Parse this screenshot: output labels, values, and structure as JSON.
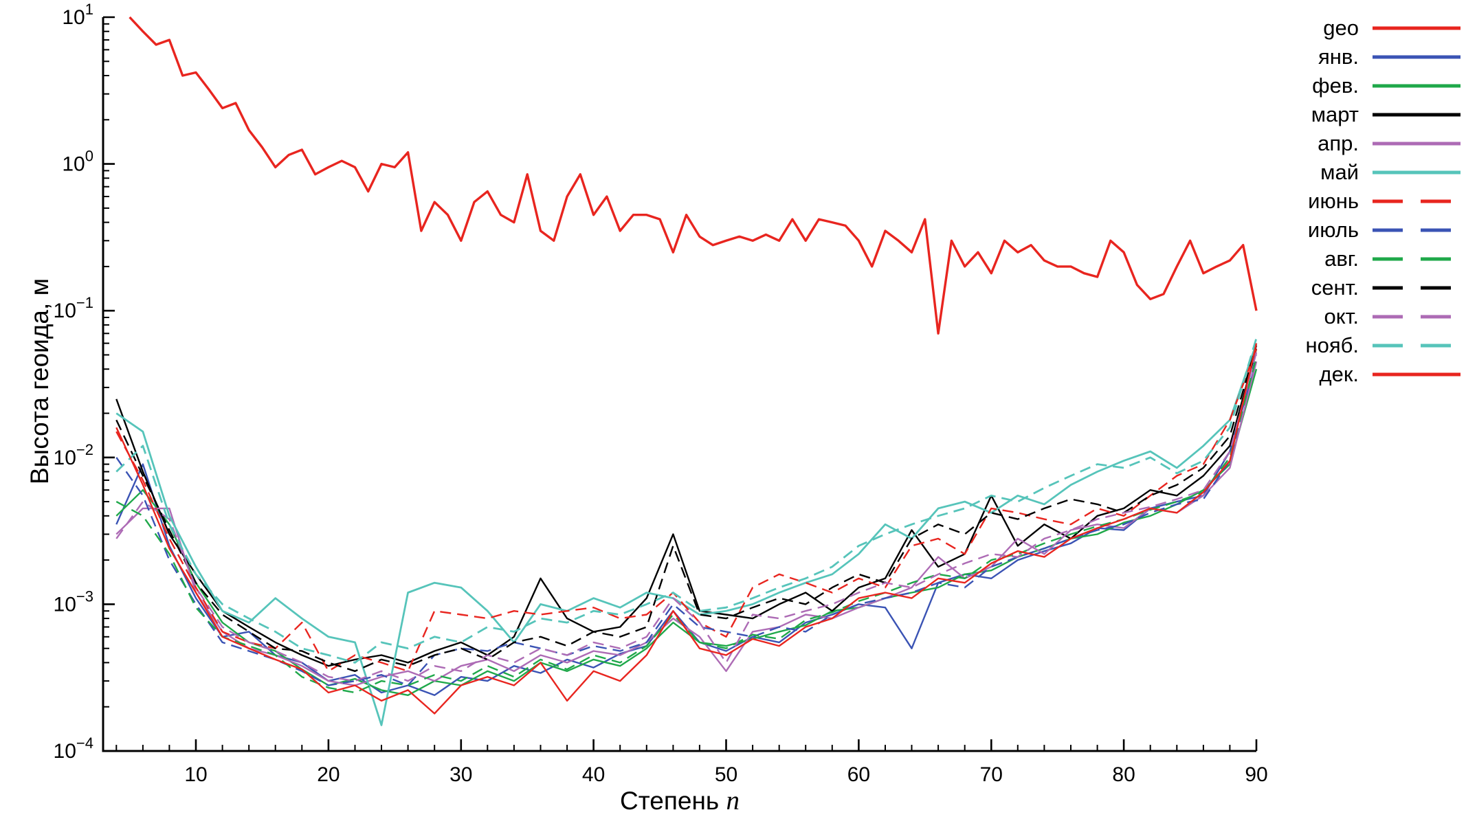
{
  "chart_data": {
    "type": "line",
    "title": "",
    "xlabel": "Степень n",
    "xlabel_text": "Степень",
    "xlabel_var": "n",
    "ylabel": "Высота геоида, м",
    "yscale": "log",
    "xlim": [
      3,
      90
    ],
    "ylim_exp": [
      -4,
      1
    ],
    "x_ticks": [
      10,
      20,
      30,
      40,
      50,
      60,
      70,
      80,
      90
    ],
    "x_minor_step": 2,
    "y_tick_exponents": [
      1,
      0,
      -1,
      -2,
      -3,
      -4
    ],
    "legend_position": "right-top",
    "grid": false,
    "colors": {
      "red": "#e8251f",
      "blue": "#3a53b4",
      "green": "#1fa84a",
      "black": "#000000",
      "purple": "#ad6bb5",
      "cyan": "#56c4ba"
    },
    "x": [
      4,
      6,
      8,
      10,
      12,
      14,
      16,
      18,
      20,
      22,
      24,
      26,
      28,
      30,
      32,
      34,
      36,
      38,
      40,
      42,
      44,
      46,
      48,
      50,
      52,
      54,
      56,
      58,
      60,
      62,
      64,
      66,
      68,
      70,
      72,
      74,
      76,
      78,
      80,
      82,
      84,
      86,
      88,
      90
    ],
    "series": [
      {
        "id": "geo",
        "name": "geo",
        "color": "#e8251f",
        "dash": false,
        "width": 3.4,
        "x": [
          5,
          6,
          7,
          8,
          9,
          10,
          11,
          12,
          13,
          14,
          15,
          16,
          17,
          18,
          19,
          20,
          21,
          22,
          23,
          24,
          25,
          26,
          27,
          28,
          29,
          30,
          31,
          32,
          33,
          34,
          35,
          36,
          37,
          38,
          39,
          40,
          41,
          42,
          43,
          44,
          45,
          46,
          47,
          48,
          49,
          50,
          51,
          52,
          53,
          54,
          55,
          56,
          57,
          58,
          59,
          60,
          61,
          62,
          63,
          64,
          65,
          66,
          67,
          68,
          69,
          70,
          71,
          72,
          73,
          74,
          75,
          76,
          77,
          78,
          79,
          80,
          81,
          82,
          83,
          84,
          85,
          86,
          87,
          88,
          89,
          90
        ],
        "values": [
          10,
          8,
          6.5,
          7,
          4,
          4.2,
          3.2,
          2.4,
          2.6,
          1.7,
          1.3,
          0.95,
          1.15,
          1.25,
          0.85,
          0.95,
          1.05,
          0.95,
          0.65,
          1.0,
          0.95,
          1.2,
          0.35,
          0.55,
          0.45,
          0.3,
          0.55,
          0.65,
          0.45,
          0.4,
          0.85,
          0.35,
          0.3,
          0.6,
          0.85,
          0.45,
          0.6,
          0.35,
          0.45,
          0.45,
          0.42,
          0.25,
          0.45,
          0.32,
          0.28,
          0.3,
          0.32,
          0.3,
          0.33,
          0.3,
          0.42,
          0.3,
          0.42,
          0.4,
          0.38,
          0.3,
          0.2,
          0.35,
          0.3,
          0.25,
          0.42,
          0.07,
          0.3,
          0.2,
          0.25,
          0.18,
          0.3,
          0.25,
          0.28,
          0.22,
          0.2,
          0.2,
          0.18,
          0.17,
          0.3,
          0.25,
          0.15,
          0.12,
          0.13,
          0.2,
          0.3,
          0.18,
          0.2,
          0.22,
          0.28,
          0.1
        ]
      },
      {
        "id": "jan",
        "name": "янв.",
        "color": "#3a53b4",
        "dash": false,
        "width": 2.4,
        "values": [
          0.0035,
          0.009,
          0.0025,
          0.0011,
          0.0006,
          0.00065,
          0.00045,
          0.0004,
          0.0003,
          0.00033,
          0.00025,
          0.00028,
          0.00024,
          0.00032,
          0.0003,
          0.00038,
          0.00034,
          0.00042,
          0.00037,
          0.00046,
          0.00052,
          0.0009,
          0.00055,
          0.00048,
          0.0006,
          0.00055,
          0.00075,
          0.00085,
          0.001,
          0.00095,
          0.0005,
          0.0014,
          0.0016,
          0.0015,
          0.002,
          0.0023,
          0.0026,
          0.0033,
          0.0032,
          0.0045,
          0.005,
          0.0055,
          0.011,
          0.045
        ]
      },
      {
        "id": "feb",
        "name": "фев.",
        "color": "#1fa84a",
        "dash": false,
        "width": 2.4,
        "values": [
          0.004,
          0.006,
          0.0035,
          0.0014,
          0.00075,
          0.00055,
          0.00048,
          0.00036,
          0.00028,
          0.00031,
          0.00026,
          0.00024,
          0.0003,
          0.00028,
          0.00035,
          0.0003,
          0.0004,
          0.00035,
          0.00042,
          0.00038,
          0.0005,
          0.00075,
          0.00055,
          0.00052,
          0.00058,
          0.00065,
          0.00072,
          0.0009,
          0.00095,
          0.0011,
          0.0012,
          0.0013,
          0.0016,
          0.0017,
          0.0021,
          0.0024,
          0.0028,
          0.003,
          0.0036,
          0.004,
          0.0048,
          0.006,
          0.009,
          0.04
        ]
      },
      {
        "id": "mar",
        "name": "март",
        "color": "#000000",
        "dash": false,
        "width": 2.4,
        "values": [
          0.025,
          0.008,
          0.003,
          0.0016,
          0.0009,
          0.0007,
          0.00055,
          0.00045,
          0.00038,
          0.00042,
          0.00045,
          0.0004,
          0.00048,
          0.00055,
          0.00045,
          0.0006,
          0.0015,
          0.0008,
          0.00065,
          0.0007,
          0.0011,
          0.003,
          0.0009,
          0.00085,
          0.0008,
          0.001,
          0.0012,
          0.0009,
          0.0013,
          0.0015,
          0.0032,
          0.0018,
          0.0022,
          0.0055,
          0.0025,
          0.0035,
          0.0028,
          0.004,
          0.0045,
          0.006,
          0.0055,
          0.0075,
          0.012,
          0.055
        ]
      },
      {
        "id": "apr",
        "name": "апр.",
        "color": "#ad6bb5",
        "dash": false,
        "width": 2.4,
        "values": [
          0.003,
          0.0045,
          0.0045,
          0.0012,
          0.00065,
          0.0005,
          0.00045,
          0.00038,
          0.0003,
          0.00028,
          0.00032,
          0.00035,
          0.0003,
          0.00038,
          0.00042,
          0.00035,
          0.00045,
          0.0004,
          0.00048,
          0.00045,
          0.00055,
          0.0008,
          0.0006,
          0.00035,
          0.00065,
          0.0007,
          0.00085,
          0.0008,
          0.00095,
          0.0011,
          0.0013,
          0.0021,
          0.0015,
          0.0018,
          0.0028,
          0.0022,
          0.0032,
          0.0035,
          0.0033,
          0.0045,
          0.0042,
          0.0055,
          0.0085,
          0.045
        ]
      },
      {
        "id": "may",
        "name": "май",
        "color": "#56c4ba",
        "dash": false,
        "width": 2.8,
        "values": [
          0.02,
          0.015,
          0.004,
          0.0018,
          0.0009,
          0.00075,
          0.0011,
          0.0008,
          0.0006,
          0.00055,
          0.00015,
          0.0012,
          0.0014,
          0.0013,
          0.0009,
          0.00055,
          0.001,
          0.0009,
          0.0011,
          0.00095,
          0.0012,
          0.0011,
          0.00085,
          0.0009,
          0.001,
          0.0012,
          0.0014,
          0.0016,
          0.0022,
          0.0035,
          0.0028,
          0.0045,
          0.005,
          0.0042,
          0.0055,
          0.0048,
          0.0065,
          0.008,
          0.0095,
          0.011,
          0.0085,
          0.012,
          0.018,
          0.06
        ]
      },
      {
        "id": "jun",
        "name": "июнь",
        "color": "#e8251f",
        "dash": true,
        "width": 2.4,
        "values": [
          0.015,
          0.007,
          0.0028,
          0.0013,
          0.00065,
          0.00055,
          0.0005,
          0.00075,
          0.00035,
          0.00045,
          0.0004,
          0.00035,
          0.0009,
          0.00085,
          0.0008,
          0.0009,
          0.00085,
          0.0009,
          0.00095,
          0.0008,
          0.00085,
          0.0012,
          0.00075,
          0.0006,
          0.0013,
          0.0016,
          0.0014,
          0.0012,
          0.0015,
          0.0013,
          0.0025,
          0.0028,
          0.0022,
          0.0045,
          0.0042,
          0.0038,
          0.0035,
          0.0045,
          0.004,
          0.0055,
          0.0075,
          0.009,
          0.018,
          0.055
        ]
      },
      {
        "id": "jul",
        "name": "июль",
        "color": "#3a53b4",
        "dash": true,
        "width": 2.4,
        "values": [
          0.01,
          0.0055,
          0.002,
          0.001,
          0.00055,
          0.00048,
          0.00042,
          0.00035,
          0.00028,
          0.0003,
          0.00033,
          0.00028,
          0.00045,
          0.0005,
          0.00048,
          0.00055,
          0.0005,
          0.00045,
          0.00052,
          0.00048,
          0.00055,
          0.001,
          0.0007,
          0.00065,
          0.0006,
          0.0007,
          0.00065,
          0.00085,
          0.001,
          0.0011,
          0.0012,
          0.0014,
          0.0013,
          0.0018,
          0.0021,
          0.0024,
          0.0028,
          0.0032,
          0.0035,
          0.0042,
          0.0048,
          0.0052,
          0.0095,
          0.05
        ]
      },
      {
        "id": "aug",
        "name": "авг.",
        "color": "#1fa84a",
        "dash": true,
        "width": 2.4,
        "values": [
          0.005,
          0.004,
          0.0022,
          0.00095,
          0.0006,
          0.00052,
          0.00045,
          0.00032,
          0.00027,
          0.00025,
          0.0003,
          0.00028,
          0.00033,
          0.0003,
          0.00038,
          0.00032,
          0.00042,
          0.00036,
          0.00045,
          0.0004,
          0.00052,
          0.00085,
          0.00055,
          0.0005,
          0.00062,
          0.00058,
          0.00078,
          0.00088,
          0.00105,
          0.0012,
          0.0014,
          0.0016,
          0.0015,
          0.002,
          0.0022,
          0.0026,
          0.003,
          0.0034,
          0.0038,
          0.0044,
          0.005,
          0.0058,
          0.01,
          0.048
        ]
      },
      {
        "id": "sep",
        "name": "сент.",
        "color": "#000000",
        "dash": true,
        "width": 2.4,
        "values": [
          0.018,
          0.0075,
          0.0032,
          0.0014,
          0.00085,
          0.00065,
          0.0005,
          0.00048,
          0.0004,
          0.00035,
          0.00042,
          0.00038,
          0.00045,
          0.0005,
          0.00042,
          0.00055,
          0.0006,
          0.00052,
          0.00065,
          0.0006,
          0.0007,
          0.0025,
          0.00085,
          0.0008,
          0.00095,
          0.0011,
          0.001,
          0.0013,
          0.0016,
          0.0014,
          0.0028,
          0.0035,
          0.003,
          0.0042,
          0.0038,
          0.0045,
          0.0052,
          0.0048,
          0.0042,
          0.0055,
          0.0065,
          0.0085,
          0.014,
          0.058
        ]
      },
      {
        "id": "oct",
        "name": "окт.",
        "color": "#ad6bb5",
        "dash": true,
        "width": 2.4,
        "values": [
          0.0028,
          0.005,
          0.0038,
          0.0013,
          0.0007,
          0.00055,
          0.00048,
          0.0004,
          0.00032,
          0.0003,
          0.00035,
          0.0003,
          0.00038,
          0.00035,
          0.00045,
          0.0004,
          0.0005,
          0.00045,
          0.00055,
          0.0005,
          0.0006,
          0.0011,
          0.00075,
          0.0004,
          0.00085,
          0.0008,
          0.0009,
          0.001,
          0.0012,
          0.0014,
          0.0013,
          0.0016,
          0.0019,
          0.0022,
          0.0021,
          0.0028,
          0.0032,
          0.0038,
          0.0042,
          0.0046,
          0.0052,
          0.006,
          0.011,
          0.052
        ]
      },
      {
        "id": "nov",
        "name": "нояб.",
        "color": "#56c4ba",
        "dash": true,
        "width": 2.8,
        "values": [
          0.008,
          0.012,
          0.0035,
          0.0016,
          0.001,
          0.0008,
          0.00065,
          0.0005,
          0.00045,
          0.0004,
          0.00055,
          0.0005,
          0.0006,
          0.00055,
          0.0007,
          0.00065,
          0.0008,
          0.00075,
          0.0009,
          0.00085,
          0.001,
          0.0012,
          0.0009,
          0.00095,
          0.0011,
          0.0013,
          0.0015,
          0.0018,
          0.0025,
          0.003,
          0.0035,
          0.004,
          0.0045,
          0.0055,
          0.005,
          0.0062,
          0.0075,
          0.009,
          0.0085,
          0.01,
          0.0078,
          0.0095,
          0.016,
          0.065
        ]
      },
      {
        "id": "dec",
        "name": "дек.",
        "color": "#e8251f",
        "dash": false,
        "width": 2.4,
        "values": [
          0.016,
          0.0065,
          0.0024,
          0.0012,
          0.0006,
          0.0005,
          0.00042,
          0.00036,
          0.00025,
          0.00028,
          0.00022,
          0.00026,
          0.00018,
          0.00028,
          0.00032,
          0.00028,
          0.0004,
          0.00022,
          0.00035,
          0.0003,
          0.00045,
          0.0009,
          0.0005,
          0.00045,
          0.00058,
          0.00052,
          0.0007,
          0.0008,
          0.0011,
          0.0012,
          0.0011,
          0.0015,
          0.0014,
          0.0019,
          0.0023,
          0.0021,
          0.0028,
          0.0033,
          0.0038,
          0.0045,
          0.0042,
          0.0058,
          0.0095,
          0.06
        ]
      }
    ]
  }
}
